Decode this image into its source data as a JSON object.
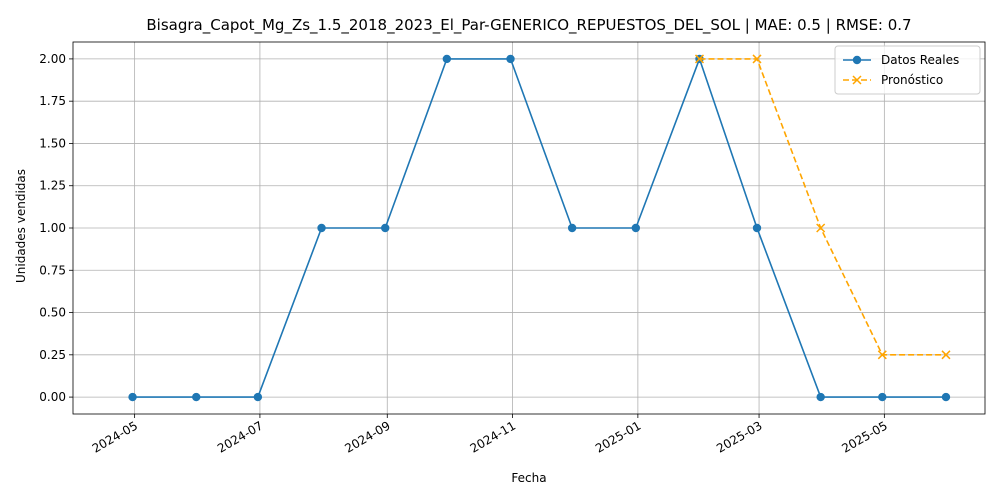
{
  "chart_data": {
    "type": "line",
    "title": "Bisagra_Capot_Mg_Zs_1.5_2018_2023_El_Par-GENERICO_REPUESTOS_DEL_SOL | MAE: 0.5 | RMSE: 0.7",
    "xlabel": "Fecha",
    "ylabel": "Unidades vendidas",
    "x_axis": "date",
    "xlim": [
      "2024-04-01",
      "2025-06-19"
    ],
    "ylim": [
      -0.1,
      2.1
    ],
    "grid": true,
    "legend": "top-right",
    "x_ticks": [
      "2024-05-01",
      "2024-07-01",
      "2024-09-01",
      "2024-11-01",
      "2025-01-01",
      "2025-03-01",
      "2025-05-01"
    ],
    "x_tick_labels": [
      "2024-05",
      "2024-07",
      "2024-09",
      "2024-11",
      "2025-01",
      "2025-03",
      "2025-05"
    ],
    "y_ticks": [
      0.0,
      0.25,
      0.5,
      0.75,
      1.0,
      1.25,
      1.5,
      1.75,
      2.0
    ],
    "y_tick_labels": [
      "0.00",
      "0.25",
      "0.50",
      "0.75",
      "1.00",
      "1.25",
      "1.50",
      "1.75",
      "2.00"
    ],
    "series": [
      {
        "name": "Datos Reales",
        "color": "#1f77b4",
        "marker": "circle",
        "linestyle": "solid",
        "x": [
          "2024-04-30",
          "2024-05-31",
          "2024-06-30",
          "2024-07-31",
          "2024-08-31",
          "2024-09-30",
          "2024-10-31",
          "2024-11-30",
          "2024-12-31",
          "2025-01-31",
          "2025-02-28",
          "2025-03-31",
          "2025-04-30",
          "2025-05-31"
        ],
        "values": [
          0,
          0,
          0,
          1,
          1,
          2,
          2,
          1,
          1,
          2,
          1,
          0,
          0,
          0
        ]
      },
      {
        "name": "Pronóstico",
        "color": "#ffa500",
        "marker": "x",
        "linestyle": "dashed",
        "x": [
          "2025-01-31",
          "2025-02-28",
          "2025-03-31",
          "2025-04-30",
          "2025-05-31"
        ],
        "values": [
          2.0,
          2.0,
          1.0,
          0.25,
          0.25
        ]
      }
    ]
  }
}
